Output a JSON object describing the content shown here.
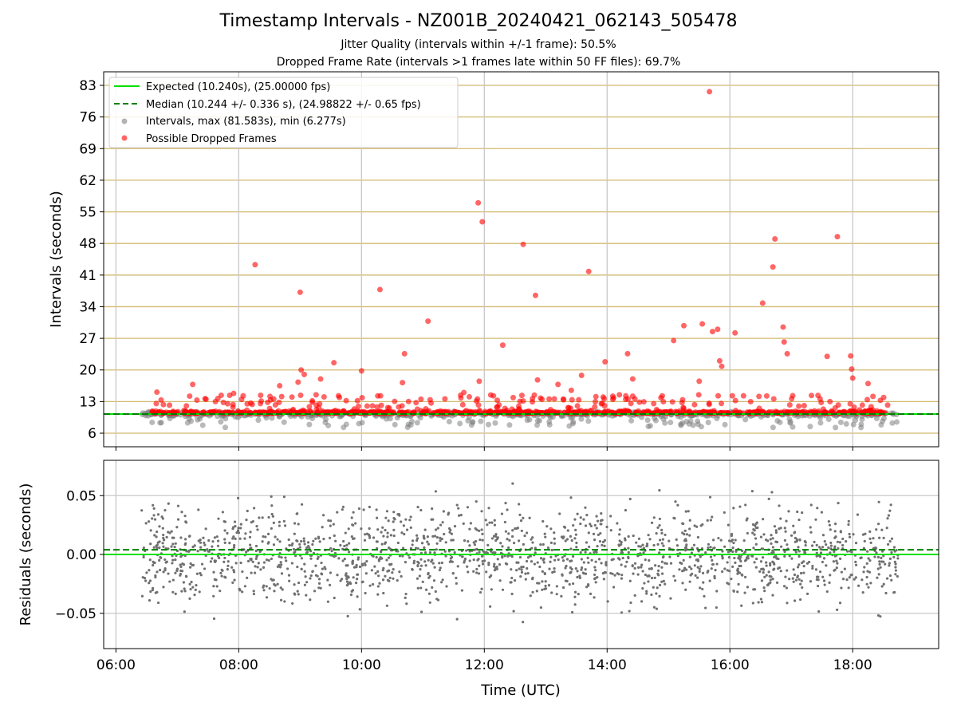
{
  "chart_data": [
    {
      "type": "scatter",
      "title": "Timestamp Intervals - NZ001B_20240421_062143_505478",
      "subtitle_1": "Jitter Quality (intervals within +/-1 frame): 50.5%",
      "subtitle_2": "Dropped Frame Rate (intervals >1 frames late within 50 FF files): 69.7%",
      "ylabel": "Intervals (seconds)",
      "ylim": [
        3,
        86
      ],
      "xlim_hours": [
        5.8,
        19.4
      ],
      "yticks": [
        6,
        13,
        20,
        27,
        34,
        41,
        48,
        55,
        62,
        69,
        76,
        83
      ],
      "grid": true,
      "legend_position": "top-left",
      "colors": {
        "expected": "#00e000",
        "median": "#008000",
        "intervals": "#808080",
        "dropped": "#ff0000",
        "hgrid": "#d2b96e"
      },
      "legend": [
        "Expected (10.240s), (25.00000 fps)",
        "Median (10.244 +/- 0.336 s), (24.98822 +/- 0.65 fps)",
        "Intervals, max (81.583s), min (6.277s)",
        "Possible Dropped Frames"
      ],
      "series": [
        {
          "name": "Expected (10.240s), (25.00000 fps)",
          "style": "solid-line",
          "y": 10.24
        },
        {
          "name": "Median (10.244 +/- 0.336 s), (24.98822 +/- 0.65 fps)",
          "style": "dashed-line",
          "y": 10.244
        },
        {
          "name": "Intervals, max (81.583s), min (6.277s)",
          "style": "points",
          "x_range": [
            "06:25",
            "18:45"
          ],
          "y_band": [
            6.3,
            11.5
          ]
        },
        {
          "name": "Possible Dropped Frames",
          "style": "points",
          "outliers": [
            {
              "x": "06:40",
              "y": 15.1
            },
            {
              "x": "07:12",
              "y": 14.2
            },
            {
              "x": "07:15",
              "y": 16.8
            },
            {
              "x": "07:28",
              "y": 13.5
            },
            {
              "x": "07:45",
              "y": 12.8
            },
            {
              "x": "07:55",
              "y": 14.8
            },
            {
              "x": "08:16",
              "y": 43.3
            },
            {
              "x": "08:40",
              "y": 16.5
            },
            {
              "x": "08:52",
              "y": 14.0
            },
            {
              "x": "08:58",
              "y": 17.3
            },
            {
              "x": "09:00",
              "y": 37.2
            },
            {
              "x": "09:01",
              "y": 20.0
            },
            {
              "x": "09:04",
              "y": 19.0
            },
            {
              "x": "09:20",
              "y": 18.0
            },
            {
              "x": "09:33",
              "y": 21.6
            },
            {
              "x": "09:45",
              "y": 13.2
            },
            {
              "x": "10:00",
              "y": 19.8
            },
            {
              "x": "10:18",
              "y": 37.8
            },
            {
              "x": "10:40",
              "y": 17.2
            },
            {
              "x": "10:42",
              "y": 23.6
            },
            {
              "x": "11:05",
              "y": 30.8
            },
            {
              "x": "11:40",
              "y": 15.0
            },
            {
              "x": "11:54",
              "y": 57.0
            },
            {
              "x": "11:55",
              "y": 17.5
            },
            {
              "x": "11:58",
              "y": 52.8
            },
            {
              "x": "12:18",
              "y": 25.5
            },
            {
              "x": "12:38",
              "y": 47.8
            },
            {
              "x": "12:50",
              "y": 36.5
            },
            {
              "x": "12:52",
              "y": 17.8
            },
            {
              "x": "13:12",
              "y": 16.8
            },
            {
              "x": "13:25",
              "y": 15.5
            },
            {
              "x": "13:35",
              "y": 18.8
            },
            {
              "x": "13:42",
              "y": 41.8
            },
            {
              "x": "13:58",
              "y": 21.8
            },
            {
              "x": "14:12",
              "y": 14.5
            },
            {
              "x": "14:25",
              "y": 18.0
            },
            {
              "x": "14:20",
              "y": 23.6
            },
            {
              "x": "15:05",
              "y": 26.5
            },
            {
              "x": "15:15",
              "y": 29.8
            },
            {
              "x": "15:30",
              "y": 17.5
            },
            {
              "x": "15:33",
              "y": 30.2
            },
            {
              "x": "15:40",
              "y": 81.6
            },
            {
              "x": "15:43",
              "y": 28.5
            },
            {
              "x": "15:48",
              "y": 29.0
            },
            {
              "x": "15:50",
              "y": 22.0
            },
            {
              "x": "15:52",
              "y": 20.8
            },
            {
              "x": "16:05",
              "y": 28.2
            },
            {
              "x": "16:32",
              "y": 34.8
            },
            {
              "x": "16:42",
              "y": 42.8
            },
            {
              "x": "16:44",
              "y": 49.0
            },
            {
              "x": "16:52",
              "y": 29.5
            },
            {
              "x": "16:53",
              "y": 26.2
            },
            {
              "x": "16:56",
              "y": 23.6
            },
            {
              "x": "17:35",
              "y": 23.0
            },
            {
              "x": "17:45",
              "y": 49.5
            },
            {
              "x": "17:58",
              "y": 23.1
            },
            {
              "x": "17:59",
              "y": 20.2
            },
            {
              "x": "18:00",
              "y": 18.2
            },
            {
              "x": "18:15",
              "y": 17.0
            }
          ]
        }
      ]
    },
    {
      "type": "scatter",
      "ylabel": "Residuals (seconds)",
      "xlabel": "Time (UTC)",
      "ylim": [
        -0.08,
        0.08
      ],
      "yticks": [
        0.05,
        0.0,
        -0.05
      ],
      "ytick_labels": [
        "0.05",
        "0.00",
        "−0.05"
      ],
      "xlim_hours": [
        5.8,
        19.4
      ],
      "xticks": [
        "06:00",
        "08:00",
        "10:00",
        "12:00",
        "14:00",
        "16:00",
        "18:00"
      ],
      "grid": true,
      "series": [
        {
          "style": "points",
          "x_range": [
            "06:25",
            "18:45"
          ],
          "y_range": [
            -0.08,
            0.08
          ]
        },
        {
          "style": "solid-line",
          "y": 0.0
        },
        {
          "style": "dashed-line",
          "y": 0.004
        }
      ]
    }
  ]
}
